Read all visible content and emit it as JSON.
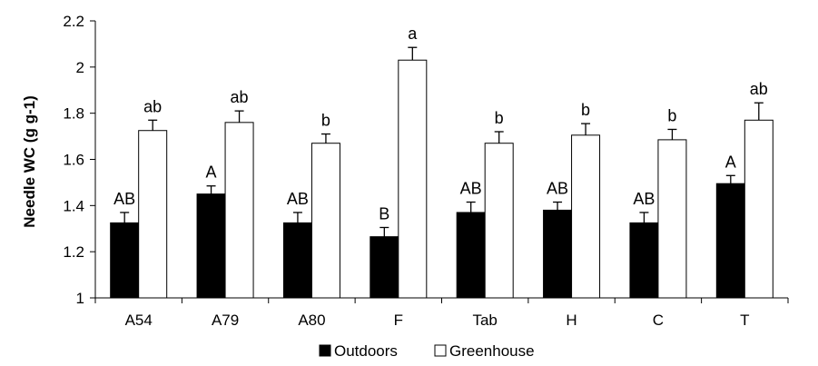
{
  "chart_data": {
    "type": "bar",
    "title": "",
    "xlabel": "",
    "ylabel": "Needle WC (g g-1)",
    "ylim": [
      1,
      2.2
    ],
    "yticks": [
      "1",
      "1.2",
      "1.4",
      "1.6",
      "1.8",
      "2",
      "2.2"
    ],
    "grid": false,
    "legend_position": "bottom",
    "categories": [
      "A54",
      "A79",
      "A80",
      "F",
      "Tab",
      "H",
      "C",
      "T"
    ],
    "series": [
      {
        "name": "Outdoors",
        "color": "#000000",
        "values": [
          1.325,
          1.45,
          1.325,
          1.265,
          1.37,
          1.38,
          1.325,
          1.495
        ],
        "errors": [
          0.045,
          0.035,
          0.045,
          0.04,
          0.045,
          0.035,
          0.045,
          0.035
        ],
        "labels": [
          "AB",
          "A",
          "AB",
          "B",
          "AB",
          "AB",
          "AB",
          "A"
        ]
      },
      {
        "name": "Greenhouse",
        "color": "#ffffff",
        "values": [
          1.725,
          1.76,
          1.67,
          2.03,
          1.67,
          1.705,
          1.685,
          1.77
        ],
        "errors": [
          0.045,
          0.05,
          0.04,
          0.055,
          0.05,
          0.05,
          0.045,
          0.075
        ],
        "labels": [
          "ab",
          "ab",
          "b",
          "a",
          "b",
          "b",
          "b",
          "ab"
        ]
      }
    ]
  }
}
